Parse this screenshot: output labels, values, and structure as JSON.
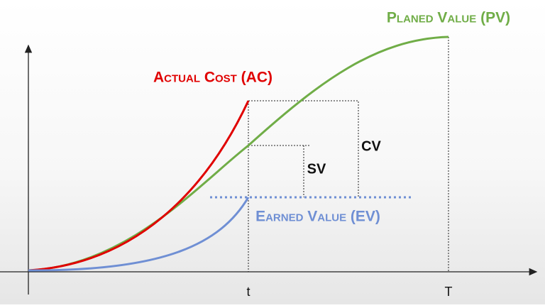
{
  "curves": [
    {
      "label": "Planed Value (PV)",
      "color": "#70ad47"
    },
    {
      "label": "Actual Cost (AC)",
      "color": "#e00000"
    },
    {
      "label": "Earned Value (EV)",
      "color": "#6f8fd4"
    }
  ],
  "variances": [
    "CV",
    "SV"
  ],
  "time_marks": [
    "t",
    "T"
  ]
}
